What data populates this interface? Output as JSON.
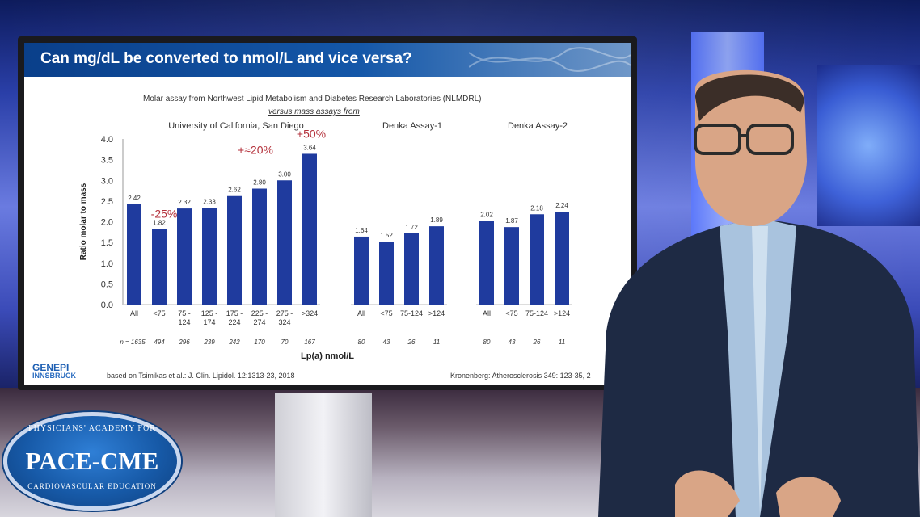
{
  "slide": {
    "title": "Can mg/dL be converted to nmol/L and vice versa?",
    "subtitle_line1": "Molar assay from Northwest Lipid Metabolism and Diabetes Research Laboratories (NLMDRL)",
    "subtitle_line2": "versus mass assays from",
    "footnote_left": "based on Tsimikas et al.: J. Clin. Lipidol. 12:1313-23, 2018",
    "footnote_right": "Kronenberg: Atherosclerosis 349: 123-35, 2",
    "logo_line1": "GENEPI",
    "logo_line2": "INNSBRUCK"
  },
  "chart_data": {
    "type": "bar",
    "ylabel": "Ratio molar to mass",
    "xlabel": "Lp(a) nmol/L",
    "ylim": [
      0,
      4.0
    ],
    "yticks": [
      "0.0",
      "0.5",
      "1.0",
      "1.5",
      "2.0",
      "2.5",
      "3.0",
      "3.5",
      "4.0"
    ],
    "bar_color": "#1f3b9e",
    "annotation_color": "#b4323c",
    "groups": [
      {
        "name": "University of California, San Diego",
        "categories": [
          "All",
          "<75",
          "75 -\n124",
          "125 -\n174",
          "175 -\n224",
          "225 -\n274",
          "275 -\n324",
          ">324"
        ],
        "values": [
          2.42,
          1.82,
          2.32,
          2.33,
          2.62,
          2.8,
          3.0,
          3.64
        ],
        "labels": [
          "2.42",
          "1.82",
          "2.32",
          "2.33",
          "2.62",
          "2.80",
          "3.00",
          "3.64"
        ],
        "n": [
          "n = 1635",
          "494",
          "296",
          "239",
          "242",
          "170",
          "70",
          "167"
        ]
      },
      {
        "name": "Denka Assay-1",
        "categories": [
          "All",
          "<75",
          "75-124",
          ">124"
        ],
        "values": [
          1.64,
          1.52,
          1.72,
          1.89
        ],
        "labels": [
          "1.64",
          "1.52",
          "1.72",
          "1.89"
        ],
        "n": [
          "80",
          "43",
          "26",
          "11"
        ]
      },
      {
        "name": "Denka Assay-2",
        "categories": [
          "All",
          "<75",
          "75-124",
          ">124"
        ],
        "values": [
          2.02,
          1.87,
          2.18,
          2.24
        ],
        "labels": [
          "2.02",
          "1.87",
          "2.18",
          "2.24"
        ],
        "n": [
          "80",
          "43",
          "26",
          "11"
        ]
      }
    ],
    "annotations": [
      {
        "text": "-25%",
        "group": 0,
        "bar": 1
      },
      {
        "text": "+≈20%",
        "group": 0,
        "bar": 4
      },
      {
        "text": "+50%",
        "group": 0,
        "bar": 7
      }
    ]
  },
  "logo": {
    "top": "PHYSICIANS' ACADEMY FOR",
    "main": "PACE-CME",
    "bottom": "CARDIOVASCULAR EDUCATION"
  }
}
